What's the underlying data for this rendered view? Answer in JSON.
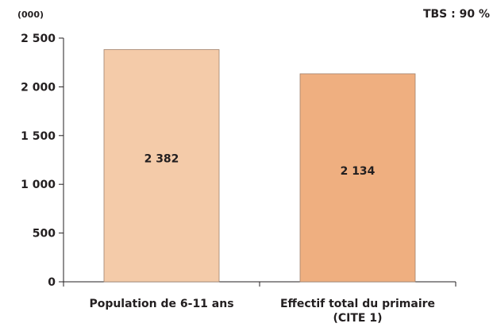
{
  "chart_data": {
    "type": "bar",
    "unit_label": "(000)",
    "note": "TBS : 90 %",
    "categories": [
      [
        "Population de 6-11 ans"
      ],
      [
        "Effectif total du primaire",
        "(CITE 1)"
      ]
    ],
    "values": [
      2382,
      2134
    ],
    "data_labels": [
      "2 382",
      "2 134"
    ],
    "colors": [
      "#f4cba9",
      "#efaf80"
    ],
    "ylim": [
      0,
      2500
    ],
    "yticks": [
      0,
      500,
      1000,
      1500,
      2000,
      2500
    ],
    "ytick_labels": [
      "0",
      "500",
      "1 000",
      "1 500",
      "2 000",
      "2 500"
    ],
    "grid": false,
    "legend": "none"
  }
}
